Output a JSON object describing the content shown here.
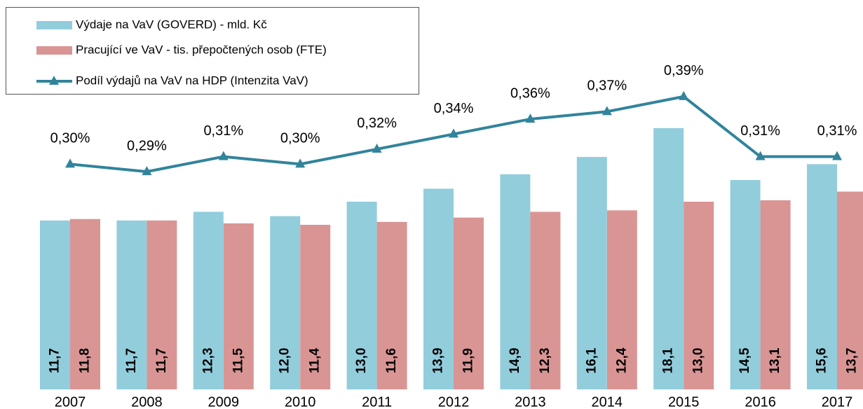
{
  "chart_data": {
    "type": "bar",
    "categories": [
      "2007",
      "2008",
      "2009",
      "2010",
      "2011",
      "2012",
      "2013",
      "2014",
      "2015",
      "2016",
      "2017"
    ],
    "ylim": [
      0,
      26
    ],
    "y2lim": [
      0,
      0.5
    ],
    "legend": "top-left",
    "series": [
      {
        "name": "Výdaje na VaV (GOVERD) - mld. Kč",
        "type": "bar",
        "color": "#92cddc",
        "values": [
          11.7,
          11.7,
          12.3,
          12.0,
          13.0,
          13.9,
          14.9,
          16.1,
          18.1,
          14.5,
          15.6
        ],
        "value_labels": [
          "11,7",
          "11,7",
          "12,3",
          "12,0",
          "13,0",
          "13,9",
          "14,9",
          "16,1",
          "18,1",
          "14,5",
          "15,6"
        ]
      },
      {
        "name": "Pracující ve VaV - tis. přepočtených osob (FTE)",
        "type": "bar",
        "color": "#d99594",
        "values": [
          11.8,
          11.7,
          11.5,
          11.4,
          11.6,
          11.9,
          12.3,
          12.4,
          13.0,
          13.1,
          13.7
        ],
        "value_labels": [
          "11,8",
          "11,7",
          "11,5",
          "11,4",
          "11,6",
          "11,9",
          "12,3",
          "12,4",
          "13,0",
          "13,1",
          "13,7"
        ]
      },
      {
        "name": "Podíl výdajů na VaV na HDP (Intenzita VaV)",
        "type": "line",
        "axis": "y2",
        "color": "#31849b",
        "values": [
          0.3,
          0.29,
          0.31,
          0.3,
          0.32,
          0.34,
          0.36,
          0.37,
          0.39,
          0.31,
          0.31
        ],
        "value_labels": [
          "0,30%",
          "0,29%",
          "0,31%",
          "0,30%",
          "0,32%",
          "0,34%",
          "0,36%",
          "0,37%",
          "0,39%",
          "0,31%",
          "0,31%"
        ]
      }
    ]
  }
}
